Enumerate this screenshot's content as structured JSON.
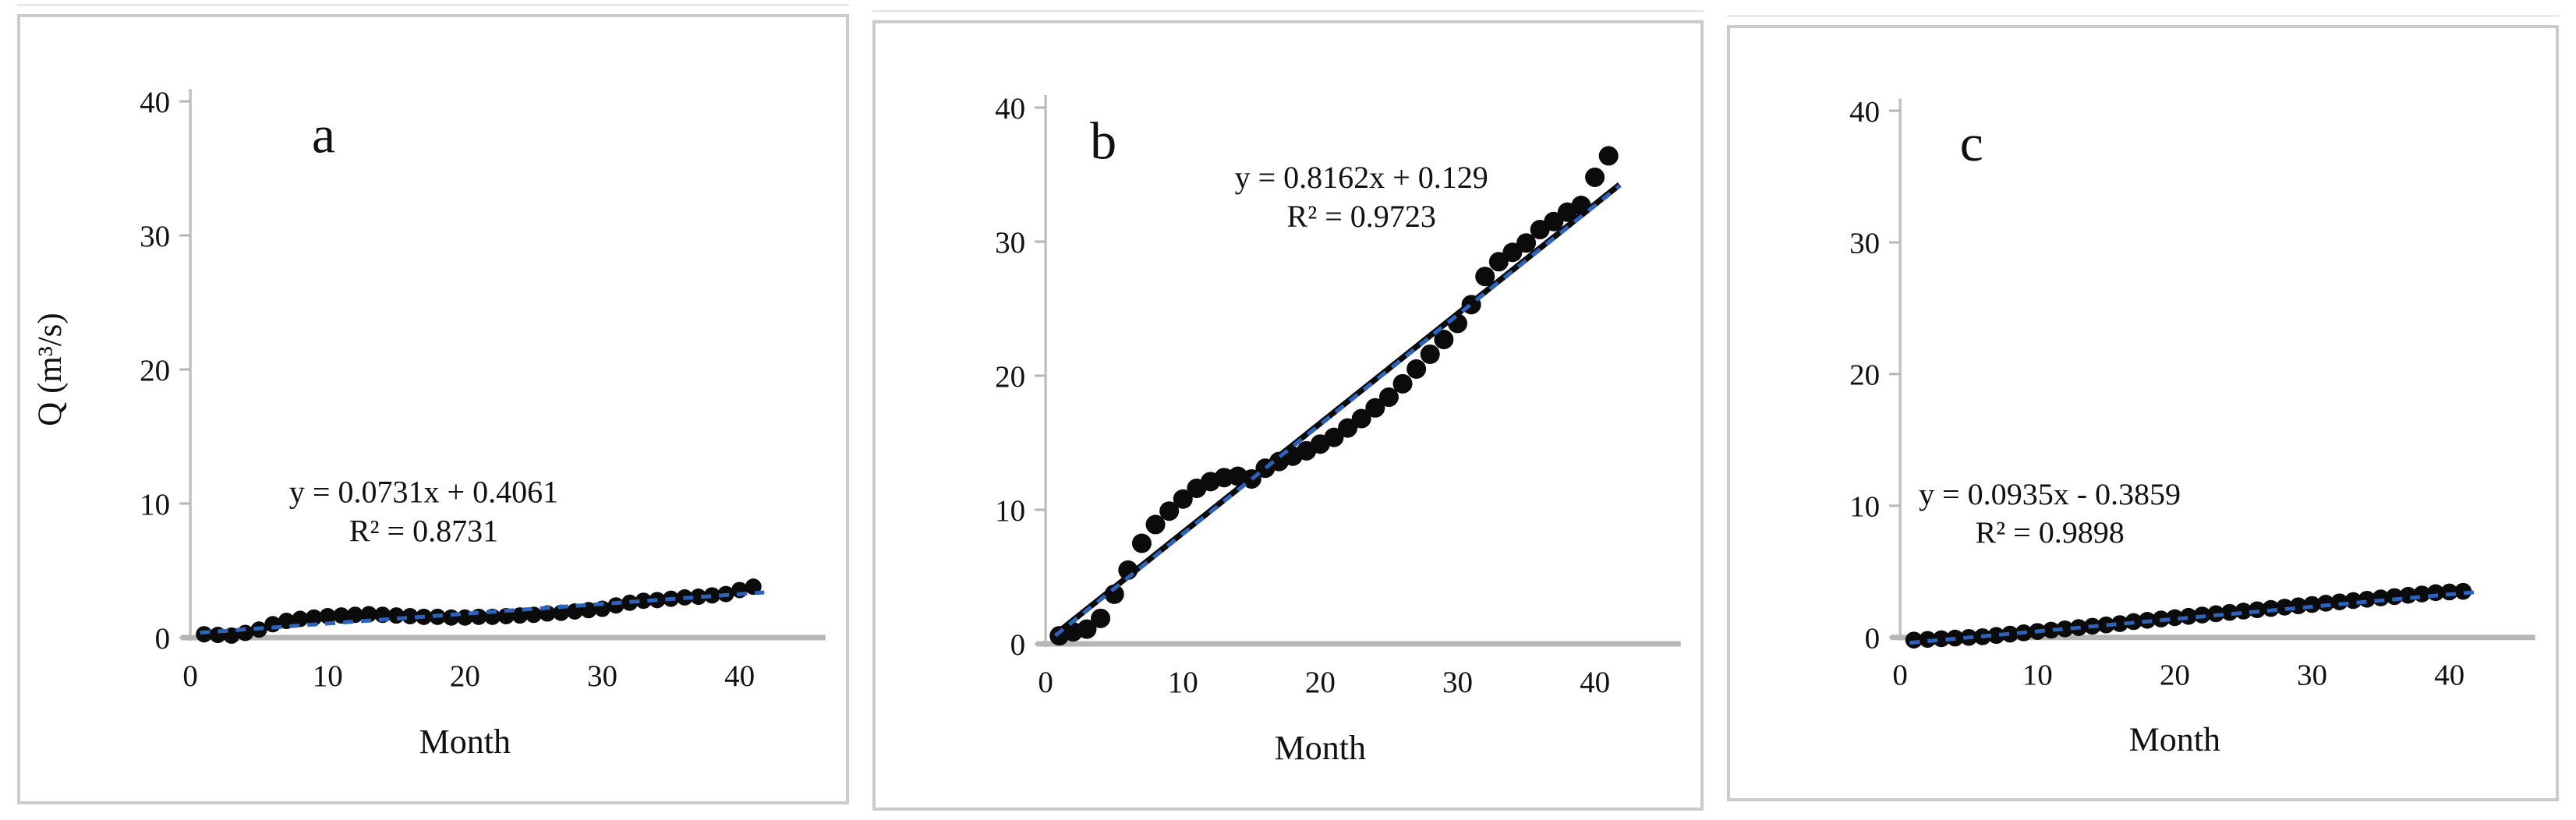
{
  "figure": {
    "description": "Three scatter panels of monthly discharge Q versus month with linear trendlines",
    "background": "#ffffff",
    "panel_labels": [
      "a",
      "b",
      "c"
    ]
  },
  "colors": {
    "dot": "#0b0b0b",
    "trend_blue": "#2d63bd",
    "trend_black": "#0b0b0b",
    "axis_x": "#b6b6b6",
    "axis_y": "#c2c2c2",
    "tick": "#b6b6b6",
    "panel_border": "#cbcbcb",
    "text": "#111111"
  },
  "chart_data": [
    {
      "type": "scatter",
      "panel_label": "a",
      "xlabel": "Month",
      "ylabel": "Q (m³/s)",
      "equation": "y = 0.0731x + 0.4061",
      "r2_label": "R² = 0.8731",
      "trend": {
        "slope": 0.0731,
        "intercept": 0.4061,
        "lines": [
          "blue-dashed"
        ]
      },
      "xlim": [
        0,
        45
      ],
      "ylim": [
        0,
        40
      ],
      "xticks": [
        0,
        10,
        20,
        30,
        40
      ],
      "yticks": [
        0,
        10,
        20,
        30,
        40
      ],
      "grid": false,
      "legend": "none",
      "marker": {
        "shape": "circle",
        "radius": 10.5
      },
      "letter_pos": [
        9.7,
        36.2
      ],
      "eq_pos": [
        17.0,
        10.1
      ],
      "x": [
        1,
        2,
        3,
        4,
        5,
        6,
        7,
        8,
        9,
        10,
        11,
        12,
        13,
        14,
        15,
        16,
        17,
        18,
        19,
        20,
        21,
        22,
        23,
        24,
        25,
        26,
        27,
        28,
        29,
        30,
        31,
        32,
        33,
        34,
        35,
        36,
        37,
        38,
        39,
        40,
        41
      ],
      "y": [
        0.25,
        0.2,
        0.15,
        0.35,
        0.6,
        1.0,
        1.25,
        1.4,
        1.5,
        1.6,
        1.65,
        1.7,
        1.75,
        1.7,
        1.65,
        1.6,
        1.55,
        1.55,
        1.5,
        1.5,
        1.55,
        1.55,
        1.6,
        1.65,
        1.7,
        1.8,
        1.85,
        1.95,
        2.05,
        2.15,
        2.4,
        2.6,
        2.75,
        2.8,
        2.9,
        3.0,
        3.05,
        3.15,
        3.25,
        3.55,
        3.8
      ]
    },
    {
      "type": "scatter",
      "panel_label": "b",
      "xlabel": "Month",
      "ylabel": "",
      "equation": "y = 0.8162x + 0.129",
      "r2_label": "R² = 0.9723",
      "trend": {
        "slope": 0.8162,
        "intercept": 0.129,
        "lines": [
          "black-solid",
          "blue-dashed"
        ]
      },
      "xlim": [
        0,
        45
      ],
      "ylim": [
        0,
        40
      ],
      "xticks": [
        0,
        10,
        20,
        30,
        40
      ],
      "yticks": [
        0,
        10,
        20,
        30,
        40
      ],
      "grid": false,
      "legend": "none",
      "marker": {
        "shape": "circle",
        "radius": 12.5
      },
      "letter_pos": [
        4.2,
        36.2
      ],
      "eq_pos": [
        23.0,
        34.0
      ],
      "x": [
        1,
        2,
        3,
        4,
        5,
        6,
        7,
        8,
        9,
        10,
        11,
        12,
        13,
        14,
        15,
        16,
        17,
        18,
        19,
        20,
        21,
        22,
        23,
        24,
        25,
        26,
        27,
        28,
        29,
        30,
        31,
        32,
        33,
        34,
        35,
        36,
        37,
        38,
        39,
        40,
        41
      ],
      "y": [
        0.6,
        0.9,
        1.1,
        1.9,
        3.7,
        5.5,
        7.5,
        8.9,
        9.9,
        10.8,
        11.6,
        12.1,
        12.4,
        12.5,
        12.3,
        13.1,
        13.6,
        14.0,
        14.4,
        14.9,
        15.4,
        16.1,
        16.8,
        17.6,
        18.4,
        19.4,
        20.5,
        21.6,
        22.7,
        23.9,
        25.3,
        27.4,
        28.5,
        29.2,
        29.9,
        30.9,
        31.5,
        32.2,
        32.7,
        34.8,
        36.4
      ]
    },
    {
      "type": "scatter",
      "panel_label": "c",
      "xlabel": "Month",
      "ylabel": "",
      "equation": "y = 0.0935x - 0.3859",
      "r2_label": "R² = 0.9898",
      "trend": {
        "slope": 0.0935,
        "intercept": -0.3859,
        "lines": [
          "blue-dashed"
        ]
      },
      "xlim": [
        0,
        45
      ],
      "ylim": [
        0,
        40
      ],
      "xticks": [
        0,
        10,
        20,
        30,
        40
      ],
      "yticks": [
        0,
        10,
        20,
        30,
        40
      ],
      "grid": false,
      "legend": "none",
      "marker": {
        "shape": "circle",
        "radius": 11
      },
      "letter_pos": [
        5.2,
        36.2
      ],
      "eq_pos": [
        10.9,
        10.1
      ],
      "x": [
        1,
        2,
        3,
        4,
        5,
        6,
        7,
        8,
        9,
        10,
        11,
        12,
        13,
        14,
        15,
        16,
        17,
        18,
        19,
        20,
        21,
        22,
        23,
        24,
        25,
        26,
        27,
        28,
        29,
        30,
        31,
        32,
        33,
        34,
        35,
        36,
        37,
        38,
        39,
        40,
        41
      ],
      "y": [
        -0.2,
        -0.15,
        -0.1,
        -0.05,
        0.0,
        0.05,
        0.15,
        0.25,
        0.35,
        0.45,
        0.55,
        0.65,
        0.75,
        0.85,
        0.95,
        1.05,
        1.2,
        1.3,
        1.4,
        1.5,
        1.6,
        1.7,
        1.8,
        1.9,
        2.0,
        2.1,
        2.2,
        2.3,
        2.4,
        2.5,
        2.6,
        2.7,
        2.8,
        2.9,
        3.0,
        3.1,
        3.2,
        3.3,
        3.4,
        3.45,
        3.5
      ]
    }
  ]
}
